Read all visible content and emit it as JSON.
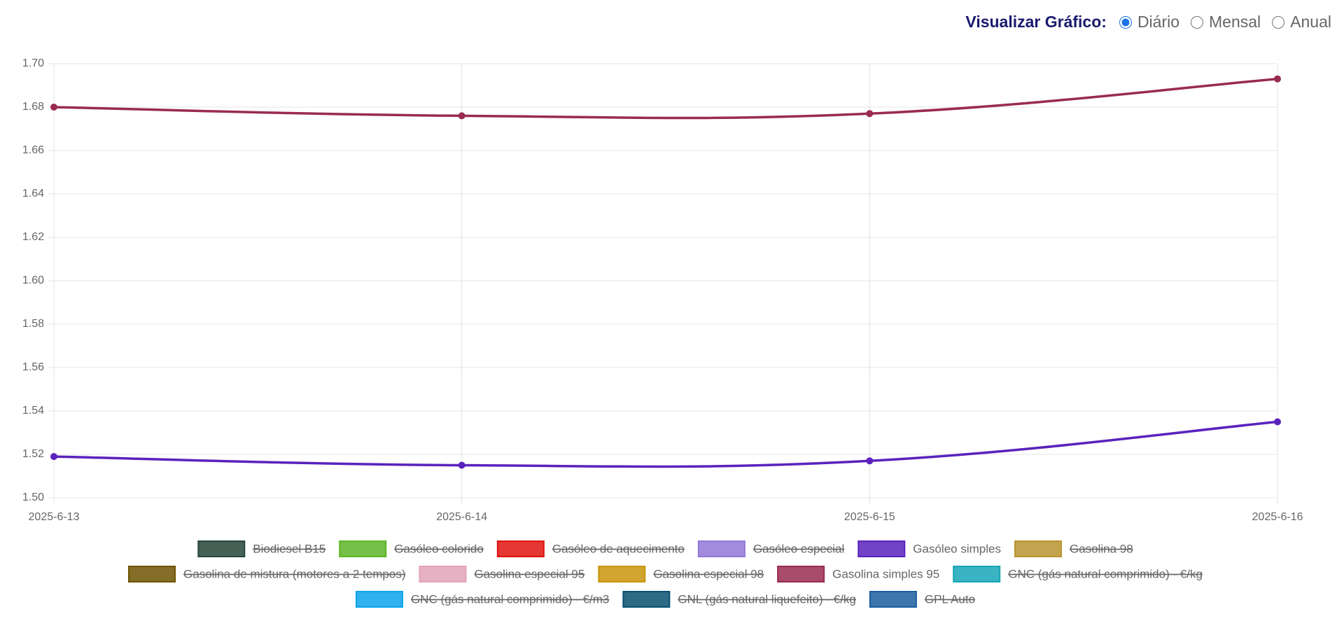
{
  "controls": {
    "label": "Visualizar Gráfico:",
    "options": [
      "Diário",
      "Mensal",
      "Anual"
    ],
    "selected": 0
  },
  "chart_data": {
    "type": "line",
    "categories": [
      "2025-6-13",
      "2025-6-14",
      "2025-6-15",
      "2025-6-16"
    ],
    "ylim": [
      1.5,
      1.7
    ],
    "yticks": [
      {
        "value": 1.5,
        "label": "1.50"
      },
      1.52,
      1.54,
      1.56,
      1.58,
      {
        "value": 1.6,
        "label": "1.60"
      },
      1.62,
      1.64,
      1.66,
      1.68,
      {
        "value": 1.7,
        "label": "1.70"
      }
    ],
    "grid": true,
    "legend": "bottom",
    "series": [
      {
        "name": "Biodiesel B15",
        "color": "#26463a",
        "hidden": true,
        "values": [
          null,
          null,
          null,
          null
        ]
      },
      {
        "name": "Gasóleo colorido",
        "color": "#5db526",
        "hidden": true,
        "values": [
          null,
          null,
          null,
          null
        ]
      },
      {
        "name": "Gasóleo de aquecimento",
        "color": "#e0140f",
        "hidden": true,
        "values": [
          null,
          null,
          null,
          null
        ]
      },
      {
        "name": "Gasóleo especial",
        "color": "#9277d6",
        "hidden": true,
        "values": [
          null,
          null,
          null,
          null
        ]
      },
      {
        "name": "Gasóleo simples",
        "color": "#5b22bd",
        "hidden": false,
        "values": [
          1.519,
          1.515,
          1.517,
          1.535
        ]
      },
      {
        "name": "Gasolina 98",
        "color": "#b8942f",
        "hidden": true,
        "values": [
          null,
          null,
          null,
          null
        ]
      },
      {
        "name": "Gasolina de mistura (motores a 2 tempos)",
        "color": "#6e5300",
        "hidden": true,
        "values": [
          null,
          null,
          null,
          null
        ]
      },
      {
        "name": "Gasolina especial 95",
        "color": "#e2a3b8",
        "hidden": true,
        "values": [
          null,
          null,
          null,
          null
        ]
      },
      {
        "name": "Gasolina especial 98",
        "color": "#c9950a",
        "hidden": true,
        "values": [
          null,
          null,
          null,
          null
        ]
      },
      {
        "name": "Gasolina simples 95",
        "color": "#9a2b50",
        "hidden": false,
        "values": [
          1.68,
          1.676,
          1.677,
          1.693
        ]
      },
      {
        "name": "GNC (gás natural comprimido) - €/kg",
        "color": "#17a6b7",
        "hidden": true,
        "values": [
          null,
          null,
          null,
          null
        ]
      },
      {
        "name": "GNC (gás natural comprimido) - €/m3",
        "color": "#0ba3ea",
        "hidden": true,
        "values": [
          null,
          null,
          null,
          null
        ]
      },
      {
        "name": "GNL (gás natural liquefeito) - €/kg",
        "color": "#08506f",
        "hidden": true,
        "values": [
          null,
          null,
          null,
          null
        ]
      },
      {
        "name": "GPL Auto",
        "color": "#1a5e9f",
        "hidden": true,
        "values": [
          null,
          null,
          null,
          null
        ]
      }
    ]
  }
}
